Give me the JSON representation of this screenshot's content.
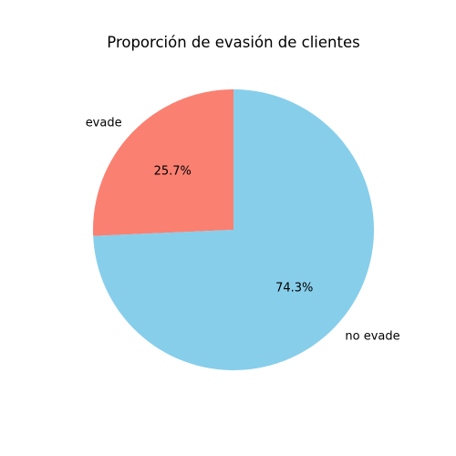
{
  "chart_data": {
    "type": "pie",
    "title": "Proporción de evasión de clientes",
    "slices": [
      {
        "label": "evade",
        "value": 25.7,
        "pct_label": "25.7%",
        "color": "#FA8072"
      },
      {
        "label": "no evade",
        "value": 74.3,
        "pct_label": "74.3%",
        "color": "#87CEEB"
      }
    ],
    "start_angle_deg": 90,
    "direction": "counterclockwise",
    "legend": "none"
  }
}
